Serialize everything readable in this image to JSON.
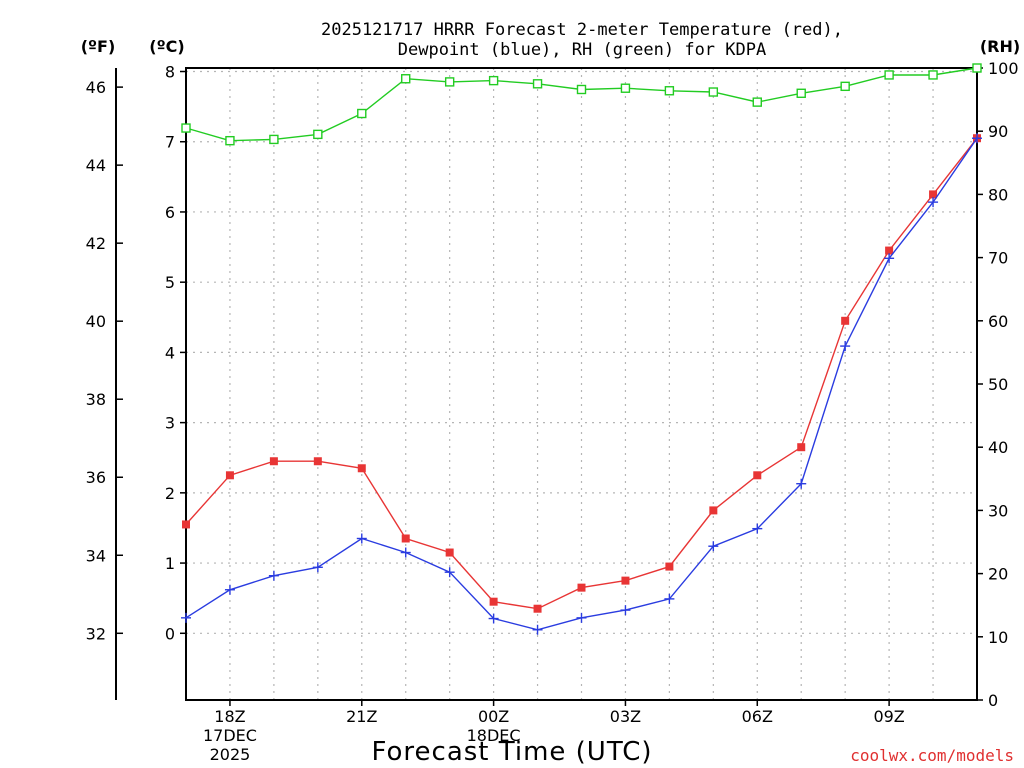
{
  "chart_data": {
    "type": "line",
    "title_line1": "2025121717 HRRR Forecast 2-meter Temperature (red),",
    "title_line2": "Dewpoint (blue), RH (green) for KDPA",
    "unit_f": "(ºF)",
    "unit_c": "(ºC)",
    "unit_rh": "(RH)",
    "xlabel": "Forecast Time (UTC)",
    "credit": "coolwx.com/models",
    "x_hours": [
      17,
      18,
      19,
      20,
      21,
      22,
      23,
      24,
      25,
      26,
      27,
      28,
      29,
      30,
      31,
      32,
      33,
      34,
      35
    ],
    "x_range": [
      17,
      35
    ],
    "ylim_c": [
      -0.95,
      8.05
    ],
    "ylim_rh": [
      0,
      100
    ],
    "x_ticks": [
      {
        "hour": 18,
        "lines": [
          "18Z",
          "17DEC",
          "2025"
        ]
      },
      {
        "hour": 21,
        "lines": [
          "21Z"
        ]
      },
      {
        "hour": 24,
        "lines": [
          "00Z",
          "18DEC"
        ]
      },
      {
        "hour": 27,
        "lines": [
          "03Z"
        ]
      },
      {
        "hour": 30,
        "lines": [
          "06Z"
        ]
      },
      {
        "hour": 33,
        "lines": [
          "09Z"
        ]
      }
    ],
    "y_ticks_c": [
      0,
      1,
      2,
      3,
      4,
      5,
      6,
      7,
      8
    ],
    "y_ticks_f": [
      32,
      34,
      36,
      38,
      40,
      42,
      44,
      46
    ],
    "y_ticks_rh": [
      0,
      10,
      20,
      30,
      40,
      50,
      60,
      70,
      80,
      90,
      100
    ],
    "series": [
      {
        "name": "Temperature",
        "unit": "C",
        "color": "#e83535",
        "marker": "filled-square",
        "values": [
          1.55,
          2.25,
          2.45,
          2.45,
          2.35,
          1.35,
          1.15,
          0.45,
          0.35,
          0.65,
          0.75,
          0.95,
          1.75,
          2.25,
          2.65,
          4.45,
          5.45,
          6.25,
          7.05
        ]
      },
      {
        "name": "Dewpoint",
        "unit": "C",
        "color": "#2a3ce0",
        "marker": "plus",
        "values": [
          0.22,
          0.62,
          0.82,
          0.94,
          1.35,
          1.15,
          0.87,
          0.21,
          0.05,
          0.22,
          0.33,
          0.49,
          1.24,
          1.49,
          2.13,
          4.09,
          5.34,
          6.14,
          7.05
        ]
      },
      {
        "name": "RH",
        "unit": "%",
        "color": "#22cc22",
        "marker": "open-square",
        "values": [
          90.5,
          88.5,
          88.7,
          89.5,
          92.8,
          98.3,
          97.8,
          98.0,
          97.5,
          96.6,
          96.8,
          96.4,
          96.2,
          94.6,
          96.0,
          97.1,
          98.9,
          98.9,
          100.0
        ]
      }
    ]
  }
}
